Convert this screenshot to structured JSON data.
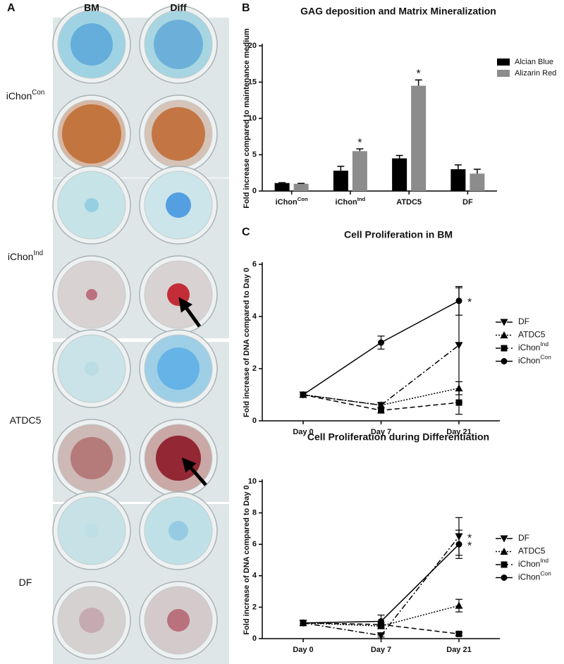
{
  "panel_labels": {
    "a": "A",
    "b": "B",
    "c": "C"
  },
  "panel_a": {
    "columns": [
      "BM",
      "Diff"
    ],
    "rows": [
      {
        "text": "iChon",
        "sup": "Con"
      },
      {
        "text": "iChon",
        "sup": "Ind"
      },
      {
        "text": "ATDC5"
      },
      {
        "text": "DF"
      }
    ]
  },
  "chart_data": [
    {
      "type": "bar",
      "title": "GAG deposition and Matrix Mineralization",
      "ylabel": "Fold increase compared to maintenance medium",
      "categories": [
        {
          "text": "iChon",
          "sup": "Con"
        },
        {
          "text": "iChon",
          "sup": "Ind"
        },
        {
          "text": "ATDC5"
        },
        {
          "text": "DF"
        }
      ],
      "series": [
        {
          "name": "Alcian Blue",
          "color": "#000000",
          "values": [
            1.1,
            2.8,
            4.5,
            3.0
          ],
          "errors": [
            0.05,
            0.6,
            0.4,
            0.6
          ],
          "significance": [
            null,
            null,
            null,
            null
          ]
        },
        {
          "name": "Alizarin Red",
          "color": "#8c8c8c",
          "values": [
            1.0,
            5.5,
            14.5,
            2.4
          ],
          "errors": [
            0.05,
            0.3,
            0.8,
            0.6
          ],
          "significance": [
            null,
            "*",
            "*",
            null
          ]
        }
      ],
      "ylim": [
        0,
        20
      ],
      "yticks": [
        0,
        5,
        10,
        15,
        20
      ]
    },
    {
      "type": "line",
      "title": "Cell Proliferation in BM",
      "ylabel": "Fold increase of DNA compared to Day 0",
      "categories": [
        "Day 0",
        "Day 7",
        "Day 21"
      ],
      "series": [
        {
          "name": "DF",
          "color": "#000000",
          "marker": "triangle-down",
          "dash": "dash-dot",
          "values": [
            1,
            0.6,
            2.9
          ],
          "errors": [
            0,
            0.1,
            2.2
          ],
          "significance": [
            null,
            null,
            null
          ]
        },
        {
          "name": "ATDC5",
          "color": "#000000",
          "marker": "triangle-up",
          "dash": "dotted",
          "values": [
            1,
            0.6,
            1.25
          ],
          "errors": [
            0,
            0.1,
            0.25
          ],
          "significance": [
            null,
            null,
            null
          ]
        },
        {
          "name": {
            "text": "iChon",
            "sup": "Ind"
          },
          "color": "#000000",
          "marker": "square",
          "dash": "dashed",
          "values": [
            1,
            0.4,
            0.7
          ],
          "errors": [
            0,
            0.1,
            0.45
          ],
          "significance": [
            null,
            null,
            null
          ]
        },
        {
          "name": {
            "text": "iChon",
            "sup": "Con"
          },
          "color": "#000000",
          "marker": "circle",
          "dash": "solid",
          "values": [
            1,
            3.0,
            4.6
          ],
          "errors": [
            0,
            0.25,
            0.55
          ],
          "significance": [
            null,
            null,
            "*"
          ]
        }
      ],
      "ylim": [
        0,
        6
      ],
      "yticks": [
        0,
        2,
        4,
        6
      ]
    },
    {
      "type": "line",
      "title": "Cell Proliferation during Differentiation",
      "ylabel": "Fold increase of DNA compared to Day 0",
      "categories": [
        "Day 0",
        "Day 7",
        "Day 21"
      ],
      "series": [
        {
          "name": "DF",
          "color": "#000000",
          "marker": "triangle-down",
          "dash": "dash-dot",
          "values": [
            1,
            0.2,
            6.5
          ],
          "errors": [
            0,
            0.1,
            1.2
          ],
          "significance": [
            null,
            null,
            "*"
          ]
        },
        {
          "name": "ATDC5",
          "color": "#000000",
          "marker": "triangle-up",
          "dash": "dotted",
          "values": [
            1,
            0.8,
            2.1
          ],
          "errors": [
            0,
            0.1,
            0.4
          ],
          "significance": [
            null,
            null,
            null
          ]
        },
        {
          "name": {
            "text": "iChon",
            "sup": "Ind"
          },
          "color": "#000000",
          "marker": "square",
          "dash": "dashed",
          "values": [
            1,
            0.9,
            0.3
          ],
          "errors": [
            0,
            0.1,
            0.1
          ],
          "significance": [
            null,
            null,
            null
          ]
        },
        {
          "name": {
            "text": "iChon",
            "sup": "Con"
          },
          "color": "#000000",
          "marker": "circle",
          "dash": "solid",
          "values": [
            1,
            1.1,
            6.0
          ],
          "errors": [
            0,
            0.4,
            0.9
          ],
          "significance": [
            null,
            null,
            "*"
          ]
        }
      ],
      "ylim": [
        0,
        10
      ],
      "yticks": [
        0,
        2,
        4,
        6,
        8,
        10
      ]
    }
  ]
}
